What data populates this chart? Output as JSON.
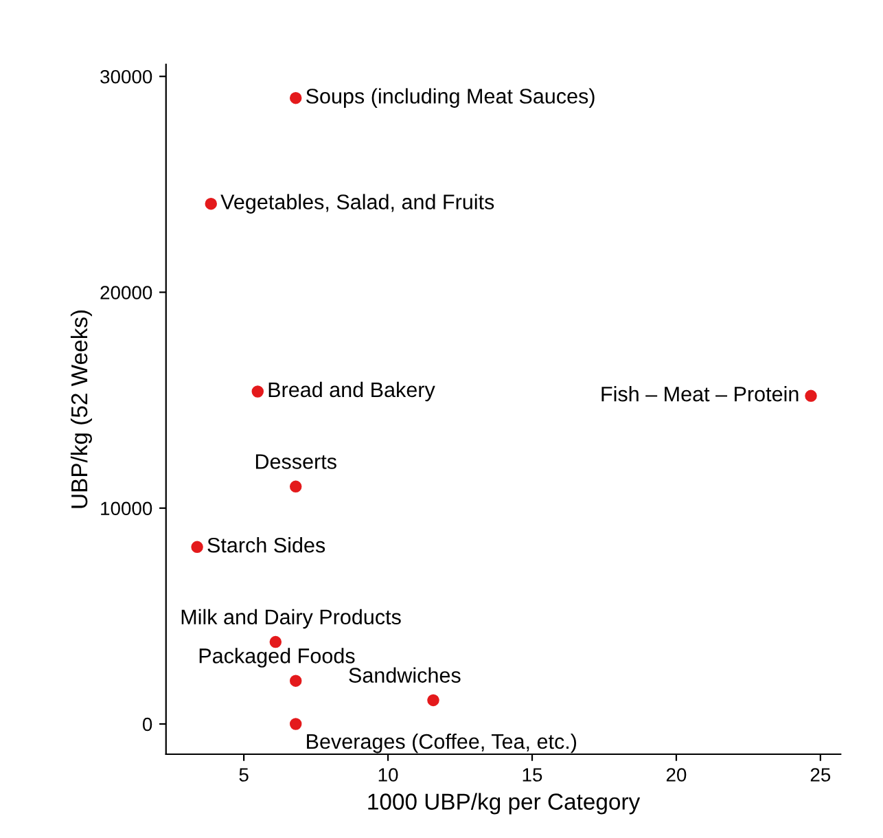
{
  "chart_data": {
    "type": "scatter",
    "xlabel": "1000 UBP/kg per Category",
    "ylabel": "UBP/kg (52 Weeks)",
    "x": [
      6.8,
      3.86,
      5.48,
      24.67,
      6.8,
      3.38,
      6.1,
      6.8,
      11.57,
      6.8
    ],
    "series": [
      {
        "color": "#e41a1c",
        "values": [
          29000,
          24100,
          15400,
          15200,
          11000,
          8200,
          3800,
          2000,
          1100,
          0
        ]
      }
    ],
    "annotations": [
      {
        "text": "Soups (including Meat Sauces)",
        "x": 6.8,
        "y": 29000
      },
      {
        "text": "Vegetables, Salad, and Fruits",
        "x": 3.86,
        "y": 24100
      },
      {
        "text": "Bread and Bakery",
        "x": 5.48,
        "y": 15400
      },
      {
        "text": "Fish – Meat – Protein",
        "x": 24.67,
        "y": 15200
      },
      {
        "text": "Desserts",
        "x": 6.8,
        "y": 11000
      },
      {
        "text": "Starch Sides",
        "x": 3.38,
        "y": 8200
      },
      {
        "text": "Milk and Dairy Products",
        "x": 6.1,
        "y": 3800
      },
      {
        "text": "Packaged Foods",
        "x": 6.8,
        "y": 2000
      },
      {
        "text": "Sandwiches",
        "x": 11.57,
        "y": 1100
      },
      {
        "text": "Beverages (Coffee, Tea, etc.)",
        "x": 6.8,
        "y": 0
      }
    ],
    "xlim": [
      2.3,
      25.7
    ],
    "ylim": [
      -1400,
      30550
    ],
    "xticks": [
      5,
      10,
      15,
      20,
      25
    ],
    "yticks": [
      0,
      10000,
      20000,
      30000
    ],
    "marker": "circle",
    "grid": false,
    "legend": false
  }
}
